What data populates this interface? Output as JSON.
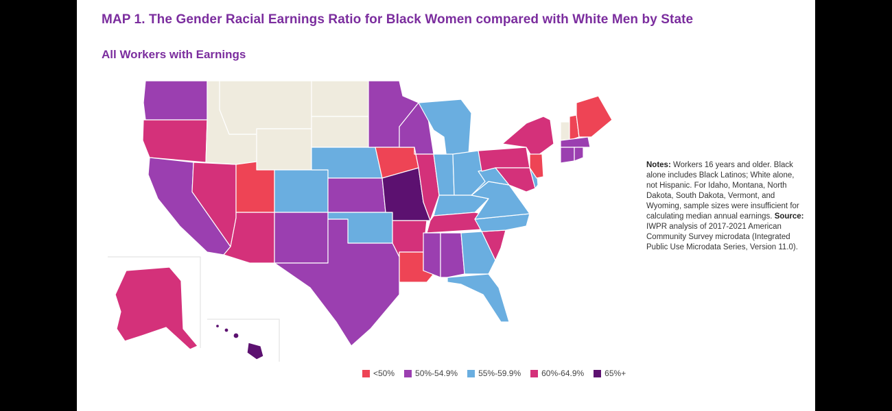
{
  "title": "MAP 1. The Gender Racial Earnings Ratio for Black Women compared with White Men by State",
  "subtitle": "All Workers with Earnings",
  "notes": {
    "notes_label": "Notes:",
    "notes_text": "Workers 16 years and older. Black alone includes Black Latinos; White alone, not Hispanic. For Idaho, Montana, North Dakota, South Dakota, Vermont, and Wyoming, sample sizes were insufficient for calculating median annual earnings.",
    "source_label": "Source:",
    "source_text": "IWPR analysis of 2017-2021 American Community Survey microdata (Integrated Public Use Microdata Series, Version 11.0)."
  },
  "legend": [
    {
      "label": "<50%",
      "color": "#ee4455"
    },
    {
      "label": "50%-54.9%",
      "color": "#9b3fb0"
    },
    {
      "label": "55%-59.9%",
      "color": "#6aaee0"
    },
    {
      "label": "60%-64.9%",
      "color": "#d4317a"
    },
    {
      "label": "65%+",
      "color": "#5c1170"
    }
  ],
  "colors": {
    "title": "#7b2d9e",
    "insufficient": "#efebde",
    "border": "#ffffff"
  },
  "categories": {
    "insufficient": [
      "ID",
      "MT",
      "ND",
      "SD",
      "WY",
      "VT"
    ],
    "lt50": [
      "UT",
      "IA",
      "LA",
      "ME",
      "NH",
      "NJ"
    ],
    "50_54": [
      "WA",
      "CA",
      "NM",
      "TX",
      "KS",
      "MN",
      "WI",
      "MS",
      "AL",
      "CT",
      "RI",
      "MA"
    ],
    "55_59": [
      "NE",
      "CO",
      "OK",
      "MI",
      "IN",
      "OH",
      "KY",
      "WV",
      "VA",
      "NC",
      "GA",
      "FL",
      "DE"
    ],
    "60_64": [
      "OR",
      "NV",
      "AZ",
      "AK",
      "IL",
      "AR",
      "TN",
      "SC",
      "NY",
      "PA",
      "MD"
    ],
    "65plus": [
      "MO",
      "HI"
    ]
  }
}
